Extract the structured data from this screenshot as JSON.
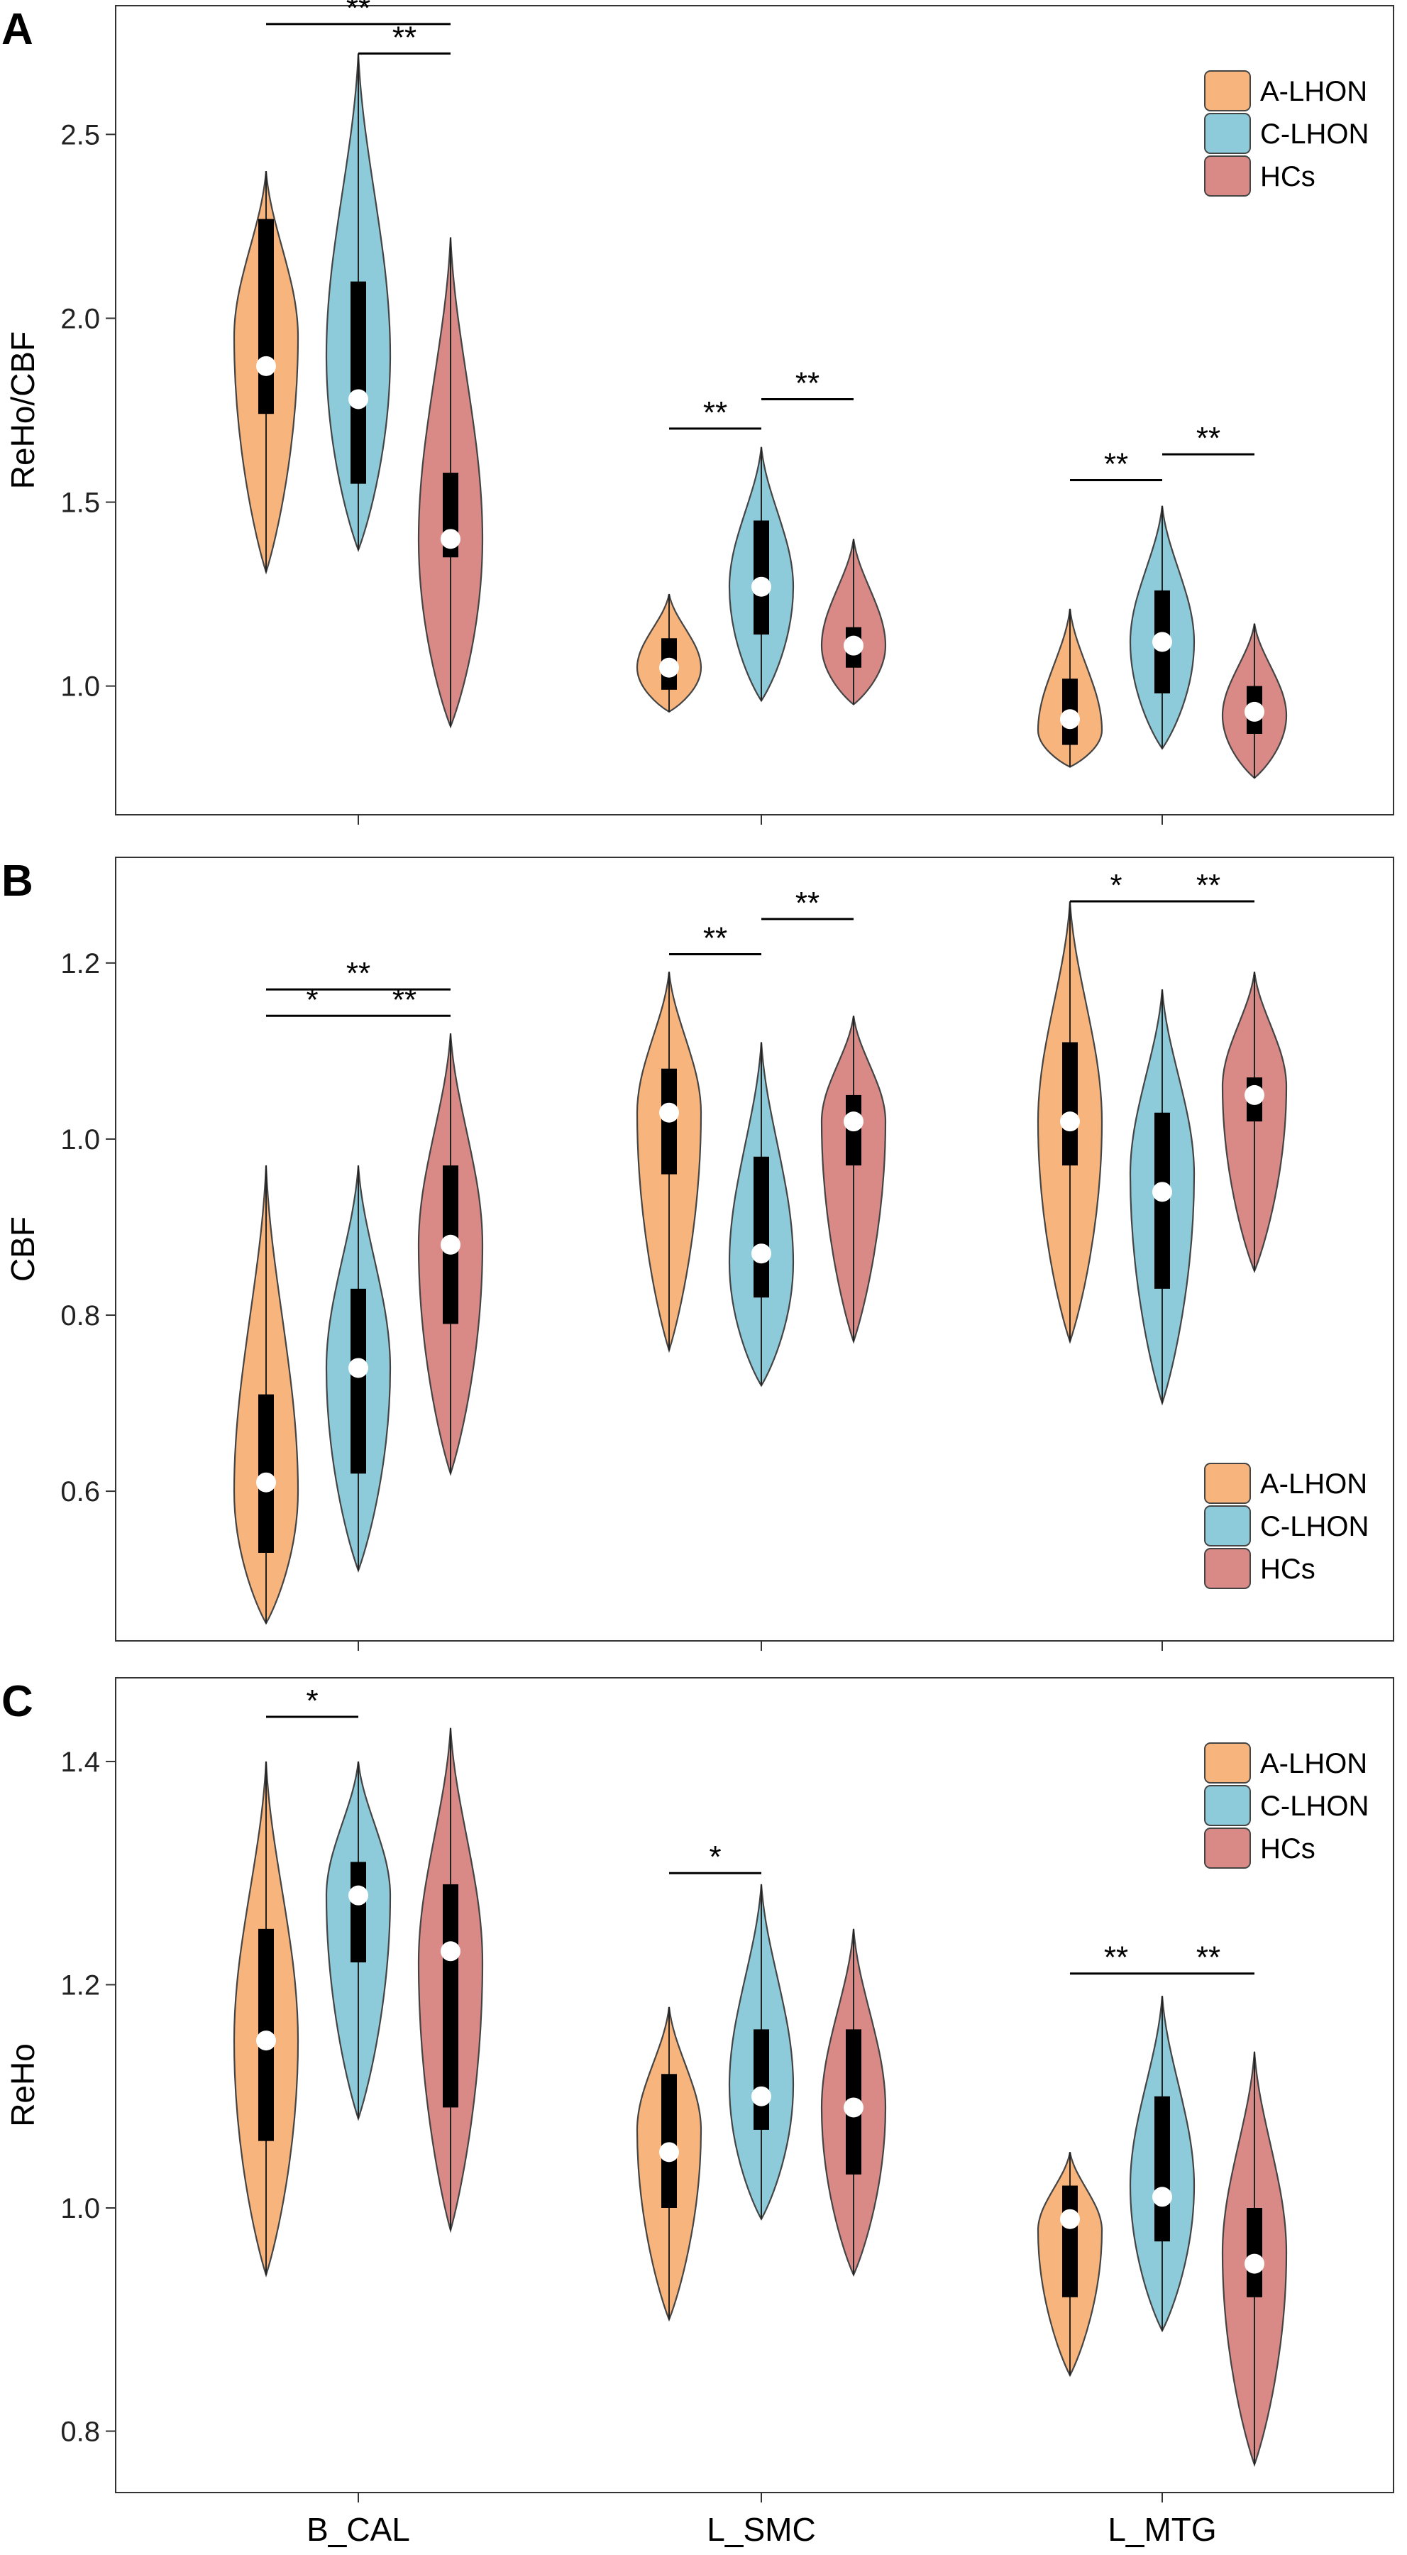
{
  "chart_data": {
    "type": "violin",
    "categories": [
      "B_CAL",
      "L_SMC",
      "L_MTG"
    ],
    "groups": [
      {
        "name": "A-LHON",
        "color": "#F7B57D"
      },
      {
        "name": "C-LHON",
        "color": "#8ECBDA"
      },
      {
        "name": "HCs",
        "color": "#D98A87"
      }
    ],
    "panels": [
      {
        "letter": "A",
        "ylabel": "ReHo/CBF",
        "ylim": [
          0.65,
          2.85
        ],
        "ticks": [
          "1.0",
          "1.5",
          "2.0",
          "2.5"
        ],
        "tick_values": [
          1.0,
          1.5,
          2.0,
          2.5
        ],
        "legend": {
          "position": "top-right",
          "labels": [
            "A-LHON",
            "C-LHON",
            "HCs"
          ]
        },
        "violins": [
          [
            {
              "min": 1.31,
              "max": 2.4,
              "q1": 1.74,
              "q3": 2.27,
              "median": 1.87,
              "peak": 1.95
            },
            {
              "min": 1.37,
              "max": 2.72,
              "q1": 1.55,
              "q3": 2.1,
              "median": 1.78,
              "peak": 1.9
            },
            {
              "min": 0.89,
              "max": 2.22,
              "q1": 1.35,
              "q3": 1.58,
              "median": 1.4,
              "peak": 1.4
            }
          ],
          [
            {
              "min": 0.93,
              "max": 1.25,
              "q1": 0.99,
              "q3": 1.13,
              "median": 1.05,
              "peak": 1.05
            },
            {
              "min": 0.96,
              "max": 1.65,
              "q1": 1.14,
              "q3": 1.45,
              "median": 1.27,
              "peak": 1.27
            },
            {
              "min": 0.95,
              "max": 1.4,
              "q1": 1.05,
              "q3": 1.16,
              "median": 1.11,
              "peak": 1.11
            }
          ],
          [
            {
              "min": 0.78,
              "max": 1.21,
              "q1": 0.84,
              "q3": 1.02,
              "median": 0.91,
              "peak": 0.88
            },
            {
              "min": 0.83,
              "max": 1.49,
              "q1": 0.98,
              "q3": 1.26,
              "median": 1.12,
              "peak": 1.12
            },
            {
              "min": 0.75,
              "max": 1.17,
              "q1": 0.87,
              "q3": 1.0,
              "median": 0.93,
              "peak": 0.92
            }
          ]
        ],
        "sig": [
          {
            "text": "**",
            "cat": 0,
            "from": 0,
            "to": 2,
            "y": 2.8
          },
          {
            "text": "**",
            "cat": 0,
            "from": 1,
            "to": 2,
            "y": 2.72
          },
          {
            "text": "**",
            "cat": 1,
            "from": 0,
            "to": 1,
            "y": 1.7
          },
          {
            "text": "**",
            "cat": 1,
            "from": 1,
            "to": 2,
            "y": 1.78
          },
          {
            "text": "**",
            "cat": 2,
            "from": 0,
            "to": 1,
            "y": 1.56
          },
          {
            "text": "**",
            "cat": 2,
            "from": 1,
            "to": 2,
            "y": 1.63
          }
        ]
      },
      {
        "letter": "B",
        "ylabel": "CBF",
        "ylim": [
          0.43,
          1.32
        ],
        "ticks": [
          "0.6",
          "0.8",
          "1.0",
          "1.2"
        ],
        "tick_values": [
          0.6,
          0.8,
          1.0,
          1.2
        ],
        "legend": {
          "position": "bottom-right",
          "labels": [
            "A-LHON",
            "C-LHON",
            "HCs"
          ]
        },
        "violins": [
          [
            {
              "min": 0.45,
              "max": 0.97,
              "q1": 0.53,
              "q3": 0.71,
              "median": 0.61,
              "peak": 0.6
            },
            {
              "min": 0.51,
              "max": 0.97,
              "q1": 0.62,
              "q3": 0.83,
              "median": 0.74,
              "peak": 0.74
            },
            {
              "min": 0.62,
              "max": 1.12,
              "q1": 0.79,
              "q3": 0.97,
              "median": 0.88,
              "peak": 0.88
            }
          ],
          [
            {
              "min": 0.76,
              "max": 1.19,
              "q1": 0.96,
              "q3": 1.08,
              "median": 1.03,
              "peak": 1.03
            },
            {
              "min": 0.72,
              "max": 1.11,
              "q1": 0.82,
              "q3": 0.98,
              "median": 0.87,
              "peak": 0.86
            },
            {
              "min": 0.77,
              "max": 1.14,
              "q1": 0.97,
              "q3": 1.05,
              "median": 1.02,
              "peak": 1.02
            }
          ],
          [
            {
              "min": 0.77,
              "max": 1.27,
              "q1": 0.97,
              "q3": 1.11,
              "median": 1.02,
              "peak": 1.02
            },
            {
              "min": 0.7,
              "max": 1.17,
              "q1": 0.83,
              "q3": 1.03,
              "median": 0.94,
              "peak": 0.96
            },
            {
              "min": 0.85,
              "max": 1.19,
              "q1": 1.02,
              "q3": 1.07,
              "median": 1.05,
              "peak": 1.06
            }
          ]
        ],
        "sig": [
          {
            "text": "**",
            "cat": 0,
            "from": 0,
            "to": 2,
            "y": 1.17
          },
          {
            "text": "*",
            "cat": 0,
            "from": 0,
            "to": 1,
            "y": 1.14
          },
          {
            "text": "**",
            "cat": 0,
            "from": 1,
            "to": 2,
            "y": 1.14
          },
          {
            "text": "**",
            "cat": 1,
            "from": 0,
            "to": 1,
            "y": 1.21
          },
          {
            "text": "**",
            "cat": 1,
            "from": 1,
            "to": 2,
            "y": 1.25
          },
          {
            "text": "*",
            "cat": 2,
            "from": 0,
            "to": 1,
            "y": 1.27
          },
          {
            "text": "**",
            "cat": 2,
            "from": 1,
            "to": 2,
            "y": 1.27
          }
        ]
      },
      {
        "letter": "C",
        "ylabel": "ReHo",
        "ylim": [
          0.745,
          1.475
        ],
        "ticks": [
          "0.8",
          "1.0",
          "1.2",
          "1.4"
        ],
        "tick_values": [
          0.8,
          1.0,
          1.2,
          1.4
        ],
        "legend": {
          "position": "top-right",
          "labels": [
            "A-LHON",
            "C-LHON",
            "HCs"
          ]
        },
        "violins": [
          [
            {
              "min": 0.94,
              "max": 1.4,
              "q1": 1.06,
              "q3": 1.25,
              "median": 1.15,
              "peak": 1.15
            },
            {
              "min": 1.08,
              "max": 1.4,
              "q1": 1.22,
              "q3": 1.31,
              "median": 1.28,
              "peak": 1.28
            },
            {
              "min": 0.98,
              "max": 1.43,
              "q1": 1.09,
              "q3": 1.29,
              "median": 1.23,
              "peak": 1.22
            }
          ],
          [
            {
              "min": 0.9,
              "max": 1.18,
              "q1": 1.0,
              "q3": 1.12,
              "median": 1.05,
              "peak": 1.07
            },
            {
              "min": 0.99,
              "max": 1.29,
              "q1": 1.07,
              "q3": 1.16,
              "median": 1.1,
              "peak": 1.11
            },
            {
              "min": 0.94,
              "max": 1.25,
              "q1": 1.03,
              "q3": 1.16,
              "median": 1.09,
              "peak": 1.09
            }
          ],
          [
            {
              "min": 0.85,
              "max": 1.05,
              "q1": 0.92,
              "q3": 1.02,
              "median": 0.99,
              "peak": 0.98
            },
            {
              "min": 0.89,
              "max": 1.19,
              "q1": 0.97,
              "q3": 1.1,
              "median": 1.01,
              "peak": 1.02
            },
            {
              "min": 0.77,
              "max": 1.14,
              "q1": 0.92,
              "q3": 1.0,
              "median": 0.95,
              "peak": 0.96
            }
          ]
        ],
        "sig": [
          {
            "text": "*",
            "cat": 0,
            "from": 0,
            "to": 1,
            "y": 1.44
          },
          {
            "text": "*",
            "cat": 1,
            "from": 0,
            "to": 1,
            "y": 1.3
          },
          {
            "text": "**",
            "cat": 2,
            "from": 0,
            "to": 1,
            "y": 1.21
          },
          {
            "text": "**",
            "cat": 2,
            "from": 1,
            "to": 2,
            "y": 1.21
          }
        ]
      }
    ]
  }
}
